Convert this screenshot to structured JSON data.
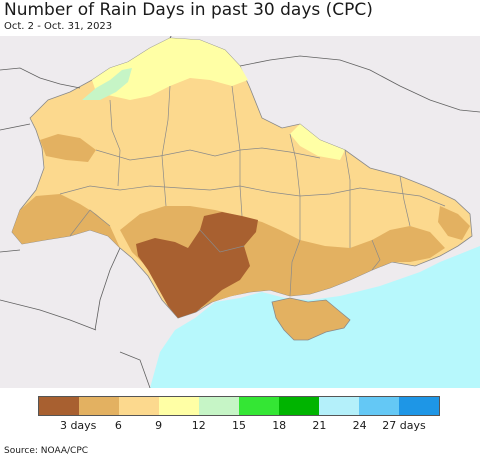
{
  "title": "Number of Rain Days in past 30 days (CPC)",
  "subtitle": "Oct. 2 - Oct. 31, 2023",
  "legend": {
    "colors": [
      "#a86030",
      "#e3b161",
      "#fcd98e",
      "#ffffa5",
      "#c6f5c6",
      "#34e634",
      "#00b400",
      "#b4f0fa",
      "#64c8f5",
      "#1e96e6"
    ],
    "labels": [
      "3 days",
      "6",
      "9",
      "12",
      "15",
      "18",
      "21",
      "24",
      "27 days"
    ]
  },
  "source": "Source: NOAA/CPC",
  "colors": {
    "outside_land": "#eeebee",
    "sea": "#b7f8fc",
    "border_lines": "#8a8a8a"
  }
}
